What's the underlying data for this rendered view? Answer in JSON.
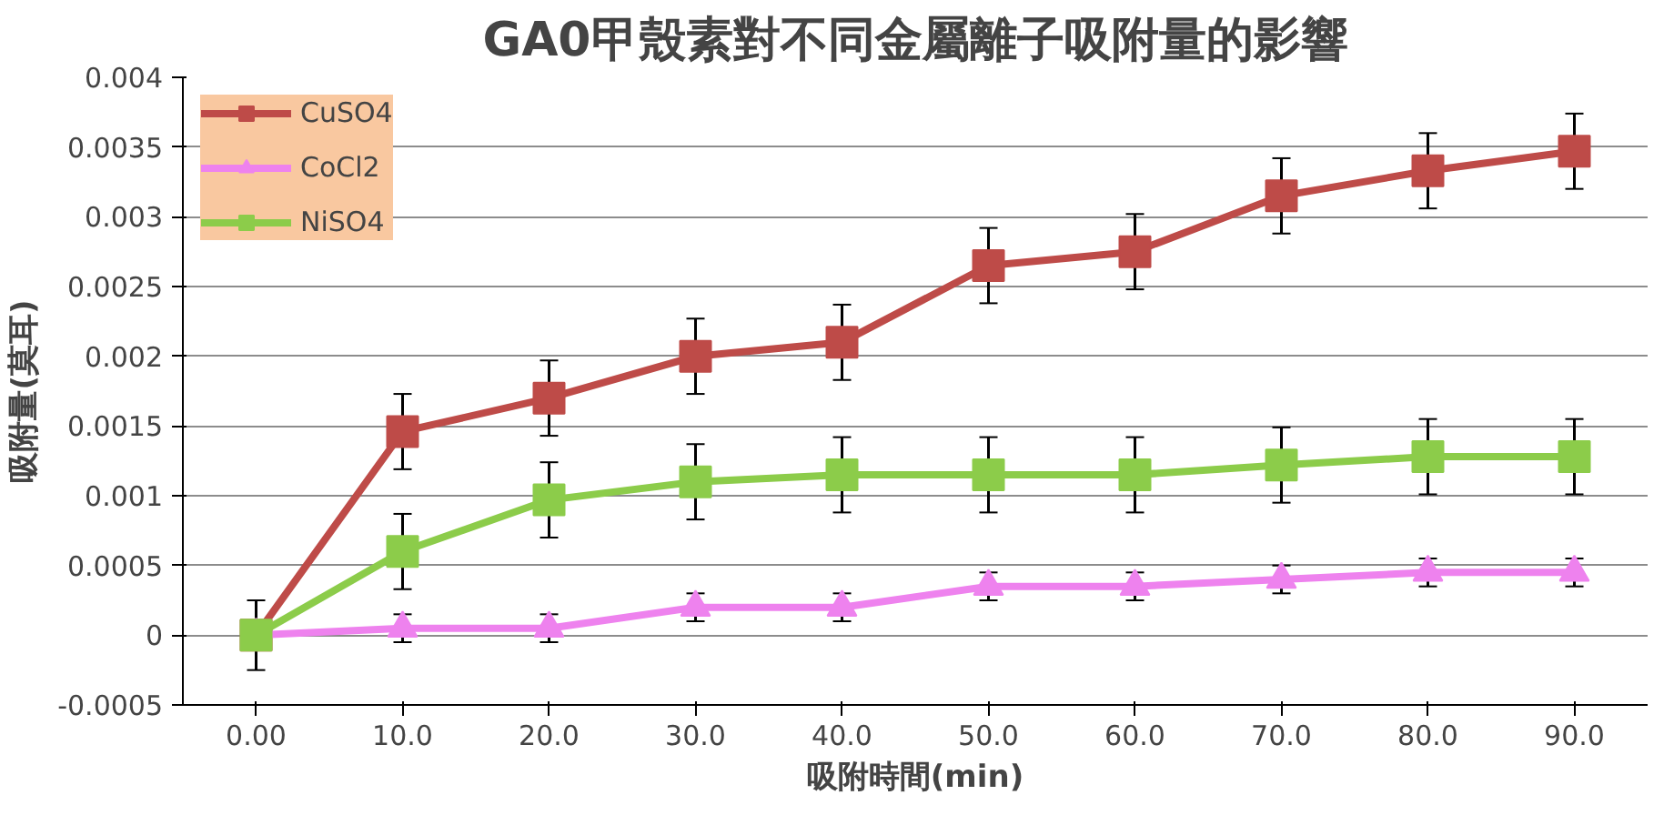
{
  "chart_data": {
    "type": "line",
    "title": "GA0甲殼素對不同金屬離子吸附量的影響",
    "xlabel": "吸附時間(min)",
    "ylabel": "吸附量(莫耳)",
    "categories": [
      "0.00",
      "10.0",
      "20.0",
      "30.0",
      "40.0",
      "50.0",
      "60.0",
      "70.0",
      "80.0",
      "90.0"
    ],
    "series": [
      {
        "name": "CuSO4",
        "color": "#be4b48",
        "marker": "square",
        "values": [
          0,
          0.00146,
          0.0017,
          0.002,
          0.0021,
          0.00265,
          0.00275,
          0.00315,
          0.00333,
          0.00347
        ],
        "errors": [
          0.00025,
          0.00027,
          0.00027,
          0.00027,
          0.00027,
          0.00027,
          0.00027,
          0.00027,
          0.00027,
          0.00027
        ]
      },
      {
        "name": "CoCl2",
        "color": "#ee82ee",
        "marker": "triangle",
        "values": [
          0,
          5e-05,
          5e-05,
          0.0002,
          0.0002,
          0.00035,
          0.00035,
          0.0004,
          0.00045,
          0.00045
        ],
        "errors": [
          null,
          0.0001,
          0.0001,
          0.0001,
          0.0001,
          0.0001,
          0.0001,
          0.0001,
          0.0001,
          0.0001
        ]
      },
      {
        "name": "NiSO4",
        "color": "#8ccc4a",
        "marker": "square",
        "values": [
          0,
          0.0006,
          0.00097,
          0.0011,
          0.00115,
          0.00115,
          0.00115,
          0.00122,
          0.00128,
          0.00128
        ],
        "errors": [
          null,
          0.00027,
          0.00027,
          0.00027,
          0.00027,
          0.00027,
          0.00027,
          0.00027,
          0.00027,
          0.00027
        ]
      }
    ],
    "ylim": [
      -0.0005,
      0.004
    ],
    "yticks": [
      -0.0005,
      0,
      0.0005,
      0.001,
      0.0015,
      0.002,
      0.0025,
      0.003,
      0.0035,
      0.004
    ],
    "grid": "y",
    "legend": "top left"
  }
}
